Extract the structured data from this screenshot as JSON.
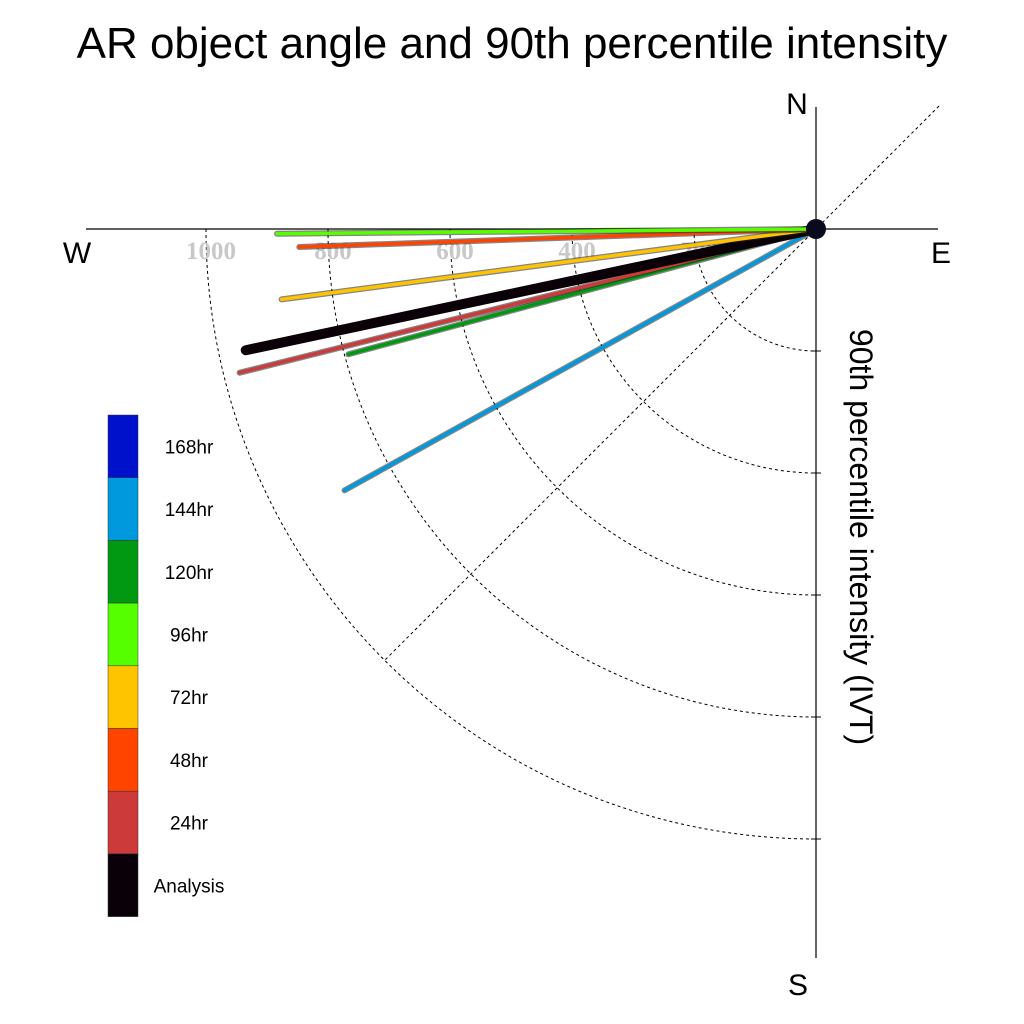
{
  "chart_data": {
    "type": "polar-line",
    "title": "AR object angle and 90th percentile intensity",
    "ylabel": "90th percentile intensity (IVT)",
    "compass": {
      "n": "N",
      "e": "E",
      "s": "S",
      "w": "W"
    },
    "radial_ticks": [
      200,
      400,
      600,
      800,
      1000
    ],
    "radial_tick_labels": [
      "200",
      "400",
      "600",
      "800",
      "1000"
    ],
    "rlim": [
      0,
      1000
    ],
    "grid": true,
    "legend_position": "left",
    "series": [
      {
        "name": "144hr",
        "color": "#0099dd",
        "angle_deg_from_west": 29,
        "intensity": 490
      },
      {
        "name": "120hr",
        "color": "#009911",
        "angle_deg_from_west": 15,
        "intensity": 440
      },
      {
        "name": "24hr",
        "color": "#cc3a3a",
        "angle_deg_from_west": 14,
        "intensity": 540
      },
      {
        "name": "Analysis",
        "color": "#0a0008",
        "angle_deg_from_west": 12,
        "intensity": 530
      },
      {
        "name": "72hr",
        "color": "#ffc400",
        "angle_deg_from_west": 7.5,
        "intensity": 490
      },
      {
        "name": "48hr",
        "color": "#ff4400",
        "angle_deg_from_west": 2,
        "intensity": 470
      },
      {
        "name": "96hr",
        "color": "#55ff00",
        "angle_deg_from_west": 0.5,
        "intensity": 490
      }
    ],
    "legend": [
      {
        "label": "168hr",
        "color": "#0011cc"
      },
      {
        "label": "144hr",
        "color": "#0099dd"
      },
      {
        "label": "120hr",
        "color": "#009911"
      },
      {
        "label": "96hr",
        "color": "#55ff00"
      },
      {
        "label": "72hr",
        "color": "#ffc400"
      },
      {
        "label": "48hr",
        "color": "#ff4400"
      },
      {
        "label": "24hr",
        "color": "#cc3a3a"
      },
      {
        "label": "Analysis",
        "color": "#0a0008"
      }
    ]
  }
}
